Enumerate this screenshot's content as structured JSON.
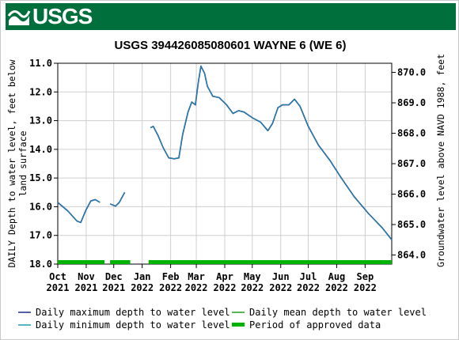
{
  "header": {
    "logo_text": "USGS",
    "logo_icon": "usgs-wave-icon",
    "brand_color": "#006f3c"
  },
  "chart_data": {
    "type": "line",
    "title": "USGS 394426085080601 WAYNE 6 (WE 6)",
    "ylabel_left": [
      "DAILY Depth to water level, feet below",
      "land surface"
    ],
    "ylabel_right": "Groundwater level above NAVD 1988, feet",
    "ylim_left": [
      18.0,
      11.0
    ],
    "ylim_right": [
      863.7,
      870.3
    ],
    "yticks_left": [
      "11.0",
      "12.0",
      "13.0",
      "14.0",
      "15.0",
      "16.0",
      "17.0",
      "18.0"
    ],
    "yticks_right": [
      "870.0",
      "869.0",
      "868.0",
      "867.0",
      "866.0",
      "865.0",
      "864.0"
    ],
    "xticks": [
      {
        "label": [
          "Oct",
          "2021"
        ],
        "x": "2021-10-01"
      },
      {
        "label": [
          "Nov",
          "2021"
        ],
        "x": "2021-11-01"
      },
      {
        "label": [
          "Dec",
          "2021"
        ],
        "x": "2021-12-01"
      },
      {
        "label": [
          "Jan",
          "2022"
        ],
        "x": "2022-01-01"
      },
      {
        "label": [
          "Feb",
          "2022"
        ],
        "x": "2022-02-01"
      },
      {
        "label": [
          "Mar",
          "2022"
        ],
        "x": "2022-03-01"
      },
      {
        "label": [
          "Apr",
          "2022"
        ],
        "x": "2022-04-01"
      },
      {
        "label": [
          "May",
          "2022"
        ],
        "x": "2022-05-01"
      },
      {
        "label": [
          "Jun",
          "2022"
        ],
        "x": "2022-06-01"
      },
      {
        "label": [
          "Jul",
          "2022"
        ],
        "x": "2022-07-01"
      },
      {
        "label": [
          "Aug",
          "2022"
        ],
        "x": "2022-08-01"
      },
      {
        "label": [
          "Sep",
          "2022"
        ],
        "x": "2022-09-01"
      }
    ],
    "xlim": [
      "2021-10-01",
      "2022-09-30"
    ],
    "series": [
      {
        "name": "Daily maximum depth to water level",
        "color": "#1c2a8c",
        "segments": [
          [
            [
              "2021-10-01",
              15.85
            ],
            [
              "2021-10-12",
              16.15
            ],
            [
              "2021-10-22",
              16.5
            ],
            [
              "2021-10-26",
              16.55
            ],
            [
              "2021-11-01",
              16.1
            ],
            [
              "2021-11-06",
              15.8
            ],
            [
              "2021-11-11",
              15.75
            ],
            [
              "2021-11-16",
              15.85
            ]
          ],
          [
            [
              "2021-11-27",
              15.9
            ],
            [
              "2021-12-03",
              15.98
            ],
            [
              "2021-12-07",
              15.85
            ],
            [
              "2021-12-13",
              15.5
            ]
          ],
          [
            [
              "2022-01-10",
              13.25
            ],
            [
              "2022-01-13",
              13.2
            ],
            [
              "2022-01-18",
              13.5
            ],
            [
              "2022-01-24",
              13.95
            ],
            [
              "2022-01-30",
              14.3
            ],
            [
              "2022-02-05",
              14.33
            ],
            [
              "2022-02-10",
              14.3
            ],
            [
              "2022-02-14",
              13.5
            ],
            [
              "2022-02-20",
              12.7
            ],
            [
              "2022-02-24",
              12.35
            ],
            [
              "2022-02-28",
              12.45
            ],
            [
              "2022-03-03",
              11.7
            ],
            [
              "2022-03-06",
              11.1
            ],
            [
              "2022-03-10",
              11.35
            ],
            [
              "2022-03-13",
              11.8
            ],
            [
              "2022-03-19",
              12.15
            ],
            [
              "2022-03-26",
              12.2
            ],
            [
              "2022-04-03",
              12.45
            ],
            [
              "2022-04-10",
              12.75
            ],
            [
              "2022-04-16",
              12.65
            ],
            [
              "2022-04-22",
              12.7
            ],
            [
              "2022-05-01",
              12.9
            ],
            [
              "2022-05-10",
              13.05
            ],
            [
              "2022-05-18",
              13.35
            ],
            [
              "2022-05-23",
              13.1
            ],
            [
              "2022-05-29",
              12.55
            ],
            [
              "2022-06-03",
              12.45
            ],
            [
              "2022-06-10",
              12.45
            ],
            [
              "2022-06-16",
              12.25
            ],
            [
              "2022-06-22",
              12.5
            ],
            [
              "2022-07-01",
              13.2
            ],
            [
              "2022-07-12",
              13.85
            ],
            [
              "2022-07-25",
              14.4
            ],
            [
              "2022-08-05",
              14.95
            ],
            [
              "2022-08-20",
              15.65
            ],
            [
              "2022-09-05",
              16.25
            ],
            [
              "2022-09-20",
              16.75
            ],
            [
              "2022-09-30",
              17.15
            ]
          ]
        ]
      },
      {
        "name": "Daily mean depth to water level",
        "color": "#1aa01a",
        "segments": []
      },
      {
        "name": "Daily minimum depth to water level",
        "color": "#18a0b4",
        "segments": []
      }
    ],
    "approved_periods": {
      "name": "Period of approved data",
      "color": "#00b300",
      "ranges": [
        [
          "2021-10-01",
          "2021-11-21"
        ],
        [
          "2021-11-27",
          "2021-12-19"
        ],
        [
          "2022-01-08",
          "2022-09-30"
        ]
      ]
    },
    "legend_items": [
      {
        "label": "Daily maximum depth to water level",
        "color": "#1c2a8c",
        "style": "line"
      },
      {
        "label": "Daily mean depth to water level",
        "color": "#1aa01a",
        "style": "line"
      },
      {
        "label": "Daily minimum depth to water level",
        "color": "#18a0b4",
        "style": "line"
      },
      {
        "label": "Period of approved data",
        "color": "#00b300",
        "style": "bar"
      }
    ],
    "legend_position": "bottom",
    "grid": true
  }
}
